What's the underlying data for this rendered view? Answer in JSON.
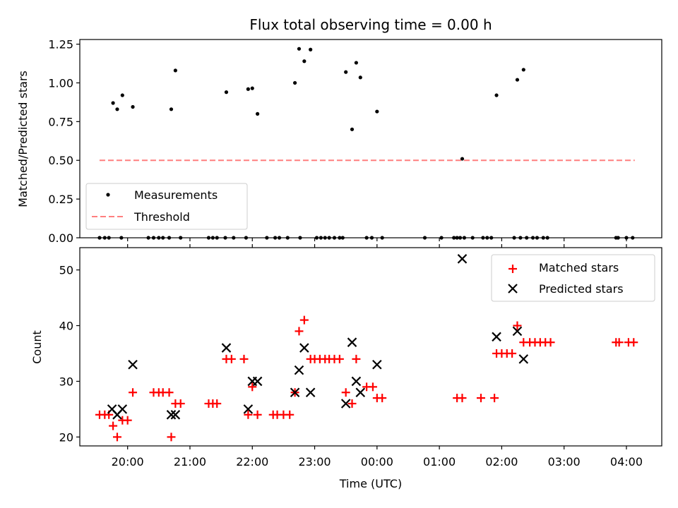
{
  "chart_data": [
    {
      "type": "scatter",
      "title": "Flux total observing time = 0.00 h",
      "ylabel": "Matched/Predicted stars",
      "xlabel": "",
      "xlim": [
        "19:14",
        "04:34"
      ],
      "ylim": [
        0,
        1.28
      ],
      "yticks": [
        "0.00",
        "0.25",
        "0.50",
        "0.75",
        "1.00",
        "1.25"
      ],
      "legend_position": "lower-left",
      "series": [
        {
          "name": "Measurements",
          "color": "#000000",
          "marker": "dot",
          "points": [
            [
              "19:33",
              0
            ],
            [
              "19:38",
              0
            ],
            [
              "19:42",
              0
            ],
            [
              "19:54",
              0
            ],
            [
              "19:46",
              0.87
            ],
            [
              "19:50",
              0.83
            ],
            [
              "19:55",
              0.92
            ],
            [
              "20:05",
              0.845
            ],
            [
              "20:20",
              0
            ],
            [
              "20:25",
              0
            ],
            [
              "20:30",
              0
            ],
            [
              "20:34",
              0
            ],
            [
              "20:40",
              0
            ],
            [
              "20:42",
              0.83
            ],
            [
              "20:46",
              1.08
            ],
            [
              "20:51",
              0
            ],
            [
              "21:18",
              0
            ],
            [
              "21:22",
              0
            ],
            [
              "21:26",
              0
            ],
            [
              "21:34",
              0
            ],
            [
              "21:42",
              0
            ],
            [
              "21:54",
              0
            ],
            [
              "22:14",
              0
            ],
            [
              "21:35",
              0.94
            ],
            [
              "21:56",
              0.96
            ],
            [
              "22:00",
              0.965
            ],
            [
              "22:05",
              0.8
            ],
            [
              "22:22",
              0
            ],
            [
              "22:26",
              0
            ],
            [
              "22:34",
              0
            ],
            [
              "22:46",
              0
            ],
            [
              "22:41",
              1.0
            ],
            [
              "22:45",
              1.22
            ],
            [
              "22:50",
              1.14
            ],
            [
              "22:56",
              1.215
            ],
            [
              "23:02",
              0
            ],
            [
              "23:06",
              0
            ],
            [
              "23:10",
              0
            ],
            [
              "23:14",
              0
            ],
            [
              "23:19",
              0
            ],
            [
              "23:24",
              0
            ],
            [
              "23:27",
              0
            ],
            [
              "23:30",
              1.07
            ],
            [
              "23:36",
              0.7
            ],
            [
              "23:40",
              1.13
            ],
            [
              "23:44",
              1.035
            ],
            [
              "23:50",
              0
            ],
            [
              "23:55",
              0
            ],
            [
              "00:05",
              0
            ],
            [
              "00:00",
              0.815
            ],
            [
              "00:46",
              0
            ],
            [
              "01:02",
              0
            ],
            [
              "01:14",
              0
            ],
            [
              "01:17",
              0
            ],
            [
              "01:20",
              0
            ],
            [
              "01:24",
              0
            ],
            [
              "01:22",
              0.51
            ],
            [
              "01:32",
              0
            ],
            [
              "01:42",
              0
            ],
            [
              "01:46",
              0
            ],
            [
              "01:50",
              0
            ],
            [
              "01:55",
              0.92
            ],
            [
              "02:15",
              1.02
            ],
            [
              "02:21",
              1.085
            ],
            [
              "02:12",
              0
            ],
            [
              "02:18",
              0
            ],
            [
              "02:24",
              0
            ],
            [
              "02:30",
              0
            ],
            [
              "02:34",
              0
            ],
            [
              "02:40",
              0
            ],
            [
              "02:44",
              0
            ],
            [
              "03:50",
              0
            ],
            [
              "03:52",
              0
            ],
            [
              "04:00",
              0
            ],
            [
              "04:06",
              0
            ]
          ]
        },
        {
          "name": "Threshold",
          "color": "#ff7f7f",
          "line": "dashed",
          "points": [
            [
              "19:33",
              0.5
            ],
            [
              "04:08",
              0.5
            ]
          ]
        }
      ]
    },
    {
      "type": "scatter",
      "title": "",
      "ylabel": "Count",
      "xlabel": "Time (UTC)",
      "xlim": [
        "19:14",
        "04:34"
      ],
      "ylim": [
        18.4,
        54
      ],
      "yticks": [
        "20",
        "30",
        "40",
        "50"
      ],
      "xticks": [
        "20:00",
        "21:00",
        "22:00",
        "23:00",
        "00:00",
        "01:00",
        "02:00",
        "03:00",
        "04:00"
      ],
      "legend_position": "top-right",
      "series": [
        {
          "name": "Matched stars",
          "color": "#ff0000",
          "marker": "plus",
          "points": [
            [
              "19:33",
              24
            ],
            [
              "19:38",
              24
            ],
            [
              "19:42",
              24
            ],
            [
              "19:46",
              22
            ],
            [
              "19:50",
              20
            ],
            [
              "19:55",
              23
            ],
            [
              "20:00",
              23
            ],
            [
              "20:05",
              28
            ],
            [
              "20:25",
              28
            ],
            [
              "20:30",
              28
            ],
            [
              "20:34",
              28
            ],
            [
              "20:40",
              28
            ],
            [
              "20:42",
              20
            ],
            [
              "20:46",
              26
            ],
            [
              "20:51",
              26
            ],
            [
              "21:18",
              26
            ],
            [
              "21:22",
              26
            ],
            [
              "21:26",
              26
            ],
            [
              "21:35",
              34
            ],
            [
              "21:40",
              34
            ],
            [
              "21:52",
              34
            ],
            [
              "21:56",
              24
            ],
            [
              "22:00",
              29
            ],
            [
              "22:05",
              24
            ],
            [
              "22:20",
              24
            ],
            [
              "22:24",
              24
            ],
            [
              "22:30",
              24
            ],
            [
              "22:36",
              24
            ],
            [
              "22:41",
              28
            ],
            [
              "22:45",
              39
            ],
            [
              "22:50",
              41
            ],
            [
              "22:56",
              34
            ],
            [
              "23:00",
              34
            ],
            [
              "23:05",
              34
            ],
            [
              "23:10",
              34
            ],
            [
              "23:14",
              34
            ],
            [
              "23:19",
              34
            ],
            [
              "23:24",
              34
            ],
            [
              "23:30",
              28
            ],
            [
              "23:36",
              26
            ],
            [
              "23:40",
              34
            ],
            [
              "23:50",
              29
            ],
            [
              "23:56",
              29
            ],
            [
              "00:00",
              27
            ],
            [
              "00:05",
              27
            ],
            [
              "01:17",
              27
            ],
            [
              "01:22",
              27
            ],
            [
              "01:40",
              27
            ],
            [
              "01:53",
              27
            ],
            [
              "01:55",
              35
            ],
            [
              "02:00",
              35
            ],
            [
              "02:05",
              35
            ],
            [
              "02:10",
              35
            ],
            [
              "02:15",
              40
            ],
            [
              "02:21",
              37
            ],
            [
              "02:27",
              37
            ],
            [
              "02:32",
              37
            ],
            [
              "02:37",
              37
            ],
            [
              "02:42",
              37
            ],
            [
              "02:47",
              37
            ],
            [
              "03:50",
              37
            ],
            [
              "03:53",
              37
            ],
            [
              "04:02",
              37
            ],
            [
              "04:07",
              37
            ]
          ]
        },
        {
          "name": "Predicted stars",
          "color": "#000000",
          "marker": "x",
          "points": [
            [
              "19:45",
              25
            ],
            [
              "19:50",
              24
            ],
            [
              "19:55",
              25
            ],
            [
              "20:05",
              33
            ],
            [
              "20:42",
              24
            ],
            [
              "20:46",
              24
            ],
            [
              "21:35",
              36
            ],
            [
              "21:56",
              25
            ],
            [
              "22:00",
              30
            ],
            [
              "22:05",
              30
            ],
            [
              "22:41",
              28
            ],
            [
              "22:45",
              32
            ],
            [
              "22:50",
              36
            ],
            [
              "22:56",
              28
            ],
            [
              "23:30",
              26
            ],
            [
              "23:36",
              37
            ],
            [
              "23:40",
              30
            ],
            [
              "23:44",
              28
            ],
            [
              "24:00",
              33
            ],
            [
              "01:22",
              52
            ],
            [
              "01:55",
              38
            ],
            [
              "02:15",
              39
            ],
            [
              "02:21",
              34
            ]
          ]
        }
      ]
    }
  ]
}
